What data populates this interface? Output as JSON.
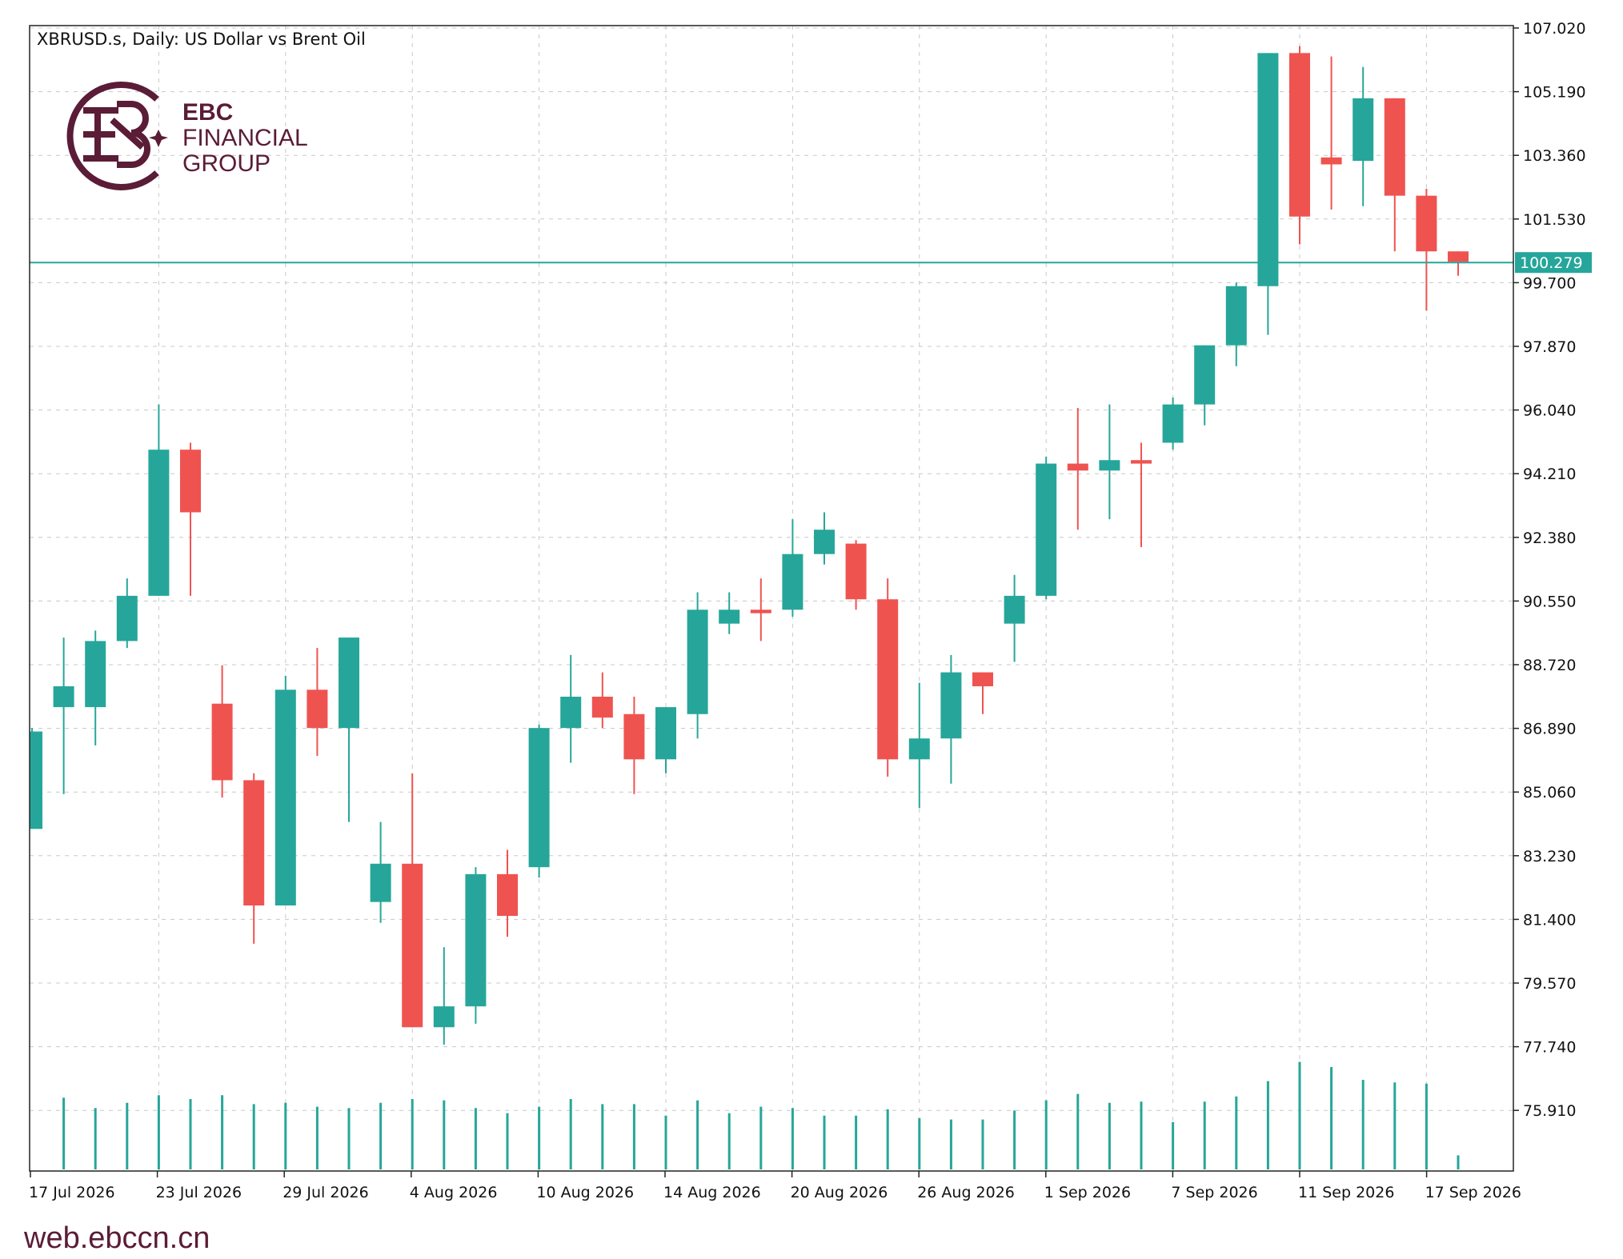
{
  "chart_title": "XBRUSD.s, Daily:  US Dollar vs Brent Oil",
  "brand": {
    "name_line1": "EBC",
    "name_line2": "FINANCIAL",
    "name_line3": "GROUP",
    "color": "#5a1c36"
  },
  "footer_url": "web.ebccn.cn",
  "colors": {
    "bull": "#26a69a",
    "bear": "#ef5350",
    "current_price_line": "#26a69a"
  },
  "chart_data": {
    "type": "candlestick",
    "symbol": "XBRUSD.s",
    "timeframe": "Daily",
    "description": "US Dollar vs Brent Oil",
    "y_ticks": [
      "107.020",
      "105.190",
      "103.360",
      "101.530",
      "99.700",
      "97.870",
      "96.040",
      "94.210",
      "92.380",
      "90.550",
      "88.720",
      "86.890",
      "85.060",
      "83.230",
      "81.400",
      "79.570",
      "77.740",
      "75.910"
    ],
    "ylim": [
      74.5,
      107.02
    ],
    "x_ticks": [
      "17 Jul 2026",
      "23 Jul 2026",
      "29 Jul 2026",
      "4 Aug 2026",
      "10 Aug 2026",
      "14 Aug 2026",
      "20 Aug 2026",
      "26 Aug 2026",
      "1 Sep 2026",
      "7 Sep 2026",
      "11 Sep 2026",
      "17 Sep 2026"
    ],
    "current_price": 100.279,
    "current_price_label": "100.279",
    "grid": true,
    "candles": [
      {
        "o": 84.0,
        "h": 86.9,
        "l": 84.0,
        "c": 86.8
      },
      {
        "o": 87.5,
        "h": 89.5,
        "l": 85.0,
        "c": 88.1
      },
      {
        "o": 87.5,
        "h": 89.7,
        "l": 86.4,
        "c": 89.4
      },
      {
        "o": 89.4,
        "h": 91.2,
        "l": 89.2,
        "c": 90.7
      },
      {
        "o": 90.7,
        "h": 96.2,
        "l": 90.7,
        "c": 94.9
      },
      {
        "o": 94.9,
        "h": 95.1,
        "l": 90.7,
        "c": 93.1
      },
      {
        "o": 87.6,
        "h": 88.7,
        "l": 84.9,
        "c": 85.4
      },
      {
        "o": 85.4,
        "h": 85.6,
        "l": 80.7,
        "c": 81.8
      },
      {
        "o": 81.8,
        "h": 88.4,
        "l": 81.8,
        "c": 88.0
      },
      {
        "o": 88.0,
        "h": 89.2,
        "l": 86.1,
        "c": 86.9
      },
      {
        "o": 86.9,
        "h": 89.5,
        "l": 84.2,
        "c": 89.5
      },
      {
        "o": 81.9,
        "h": 84.2,
        "l": 81.3,
        "c": 83.0
      },
      {
        "o": 83.0,
        "h": 85.6,
        "l": 78.3,
        "c": 78.3
      },
      {
        "o": 78.3,
        "h": 80.6,
        "l": 77.8,
        "c": 78.9
      },
      {
        "o": 78.9,
        "h": 82.9,
        "l": 78.4,
        "c": 82.7
      },
      {
        "o": 82.7,
        "h": 83.4,
        "l": 80.9,
        "c": 81.5
      },
      {
        "o": 82.9,
        "h": 87.0,
        "l": 82.6,
        "c": 86.9
      },
      {
        "o": 86.9,
        "h": 89.0,
        "l": 85.9,
        "c": 87.8
      },
      {
        "o": 87.8,
        "h": 88.5,
        "l": 86.9,
        "c": 87.2
      },
      {
        "o": 87.3,
        "h": 87.8,
        "l": 85.0,
        "c": 86.0
      },
      {
        "o": 86.0,
        "h": 87.5,
        "l": 85.6,
        "c": 87.5
      },
      {
        "o": 87.3,
        "h": 90.8,
        "l": 86.6,
        "c": 90.3
      },
      {
        "o": 89.9,
        "h": 90.8,
        "l": 89.6,
        "c": 90.3
      },
      {
        "o": 90.3,
        "h": 91.2,
        "l": 89.4,
        "c": 90.2
      },
      {
        "o": 90.3,
        "h": 92.9,
        "l": 90.1,
        "c": 91.9
      },
      {
        "o": 91.9,
        "h": 93.1,
        "l": 91.6,
        "c": 92.6
      },
      {
        "o": 92.2,
        "h": 92.3,
        "l": 90.3,
        "c": 90.6
      },
      {
        "o": 90.6,
        "h": 91.2,
        "l": 85.5,
        "c": 86.0
      },
      {
        "o": 86.0,
        "h": 88.2,
        "l": 84.6,
        "c": 86.6
      },
      {
        "o": 86.6,
        "h": 89.0,
        "l": 85.3,
        "c": 88.5
      },
      {
        "o": 88.5,
        "h": 88.5,
        "l": 87.3,
        "c": 88.1
      },
      {
        "o": 89.9,
        "h": 91.3,
        "l": 88.8,
        "c": 90.7
      },
      {
        "o": 90.7,
        "h": 94.7,
        "l": 90.6,
        "c": 94.5
      },
      {
        "o": 94.5,
        "h": 96.1,
        "l": 92.6,
        "c": 94.3
      },
      {
        "o": 94.3,
        "h": 96.2,
        "l": 92.9,
        "c": 94.6
      },
      {
        "o": 94.6,
        "h": 95.1,
        "l": 92.1,
        "c": 94.5
      },
      {
        "o": 95.1,
        "h": 96.4,
        "l": 94.9,
        "c": 96.2
      },
      {
        "o": 96.2,
        "h": 97.9,
        "l": 95.6,
        "c": 97.9
      },
      {
        "o": 97.9,
        "h": 99.7,
        "l": 97.3,
        "c": 99.6
      },
      {
        "o": 99.6,
        "h": 106.3,
        "l": 98.2,
        "c": 106.3
      },
      {
        "o": 106.3,
        "h": 106.5,
        "l": 100.8,
        "c": 101.6
      },
      {
        "o": 103.3,
        "h": 106.2,
        "l": 101.8,
        "c": 103.1
      },
      {
        "o": 103.2,
        "h": 105.9,
        "l": 101.9,
        "c": 105.0
      },
      {
        "o": 105.0,
        "h": 105.0,
        "l": 100.6,
        "c": 102.2
      },
      {
        "o": 102.2,
        "h": 102.4,
        "l": 98.9,
        "c": 100.6
      },
      {
        "o": 100.6,
        "h": 100.6,
        "l": 99.9,
        "c": 100.3
      }
    ],
    "volumes": [
      null,
      0.56,
      0.48,
      0.52,
      0.58,
      0.55,
      0.58,
      0.51,
      0.52,
      0.49,
      0.48,
      0.52,
      0.55,
      0.54,
      0.48,
      0.44,
      0.49,
      0.55,
      0.51,
      0.51,
      0.42,
      0.54,
      0.44,
      0.49,
      0.48,
      0.42,
      0.42,
      0.47,
      0.4,
      0.39,
      0.39,
      0.46,
      0.54,
      0.59,
      0.52,
      0.53,
      0.37,
      0.53,
      0.57,
      0.69,
      0.84,
      0.8,
      0.7,
      0.68,
      0.67,
      0.11
    ]
  }
}
